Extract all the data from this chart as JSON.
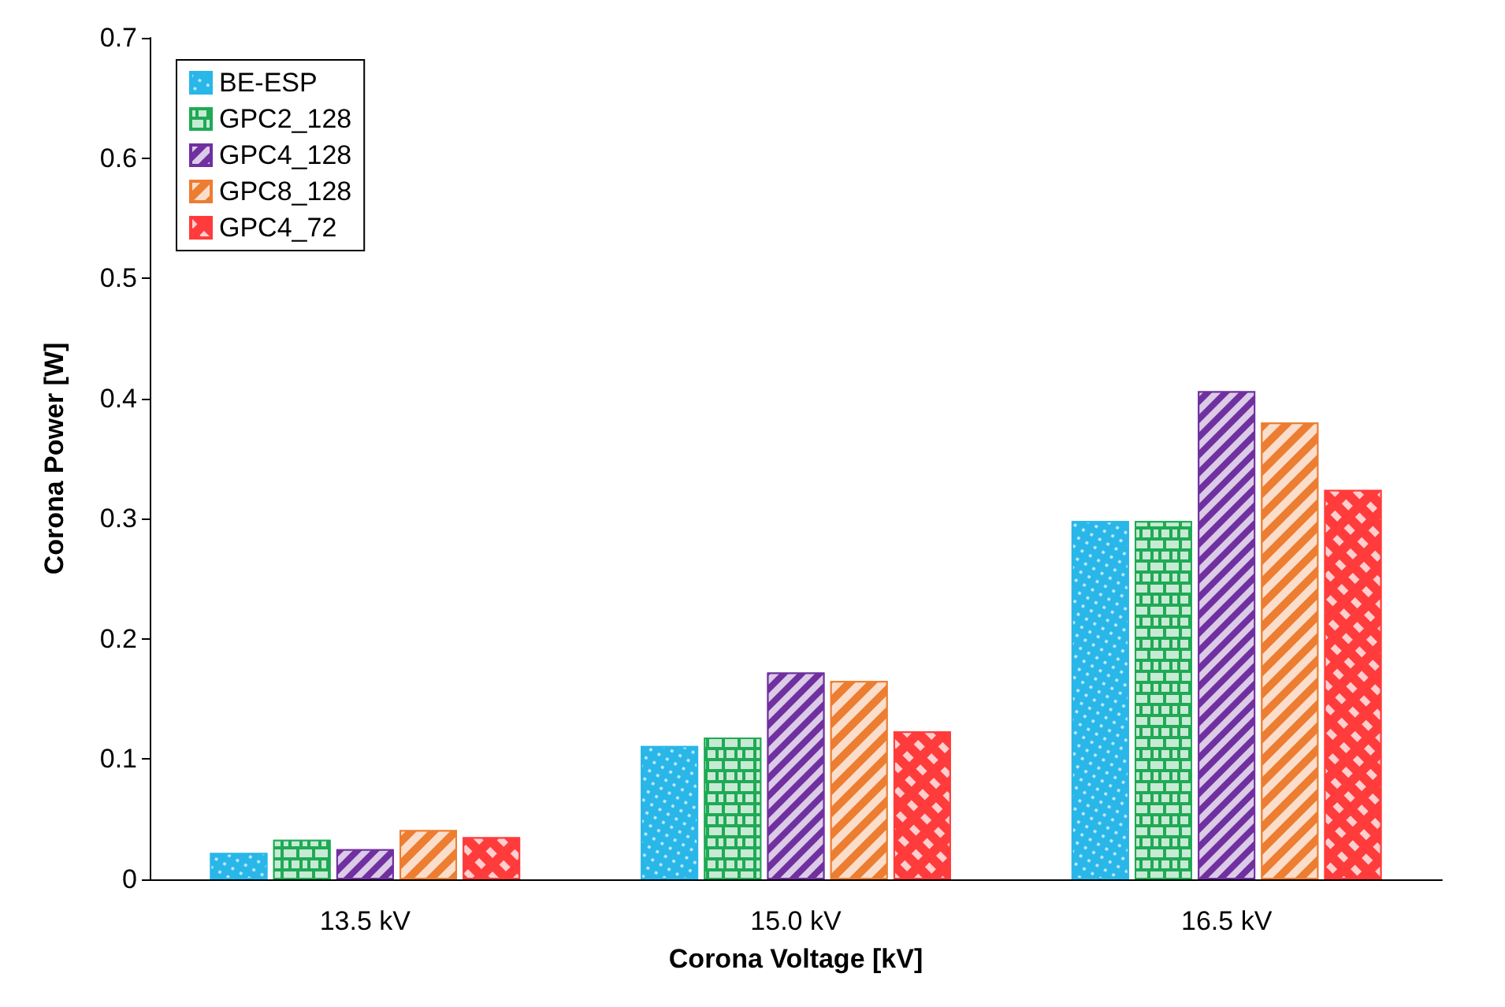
{
  "chart_data": {
    "type": "bar",
    "xlabel": "Corona Voltage [kV]",
    "ylabel": "Corona Power [W]",
    "categories": [
      "13.5 kV",
      "15.0 kV",
      "16.5 kV"
    ],
    "series": [
      {
        "name": "BE-ESP",
        "color": "#29b6e8",
        "values": [
          0.022,
          0.111,
          0.298
        ]
      },
      {
        "name": "GPC2_128",
        "color": "#1faa55",
        "values": [
          0.033,
          0.118,
          0.298
        ]
      },
      {
        "name": "GPC4_128",
        "color": "#7030a0",
        "values": [
          0.025,
          0.172,
          0.406
        ]
      },
      {
        "name": "GPC8_128",
        "color": "#ed7d31",
        "values": [
          0.041,
          0.165,
          0.38
        ]
      },
      {
        "name": "GPC4_72",
        "color": "#ff3b3b",
        "values": [
          0.035,
          0.123,
          0.324
        ]
      }
    ],
    "ylim": [
      0,
      0.7
    ],
    "yticks": [
      0,
      0.1,
      0.2,
      0.3,
      0.4,
      0.5,
      0.6,
      0.7
    ],
    "grid": false,
    "legend": "top left"
  }
}
